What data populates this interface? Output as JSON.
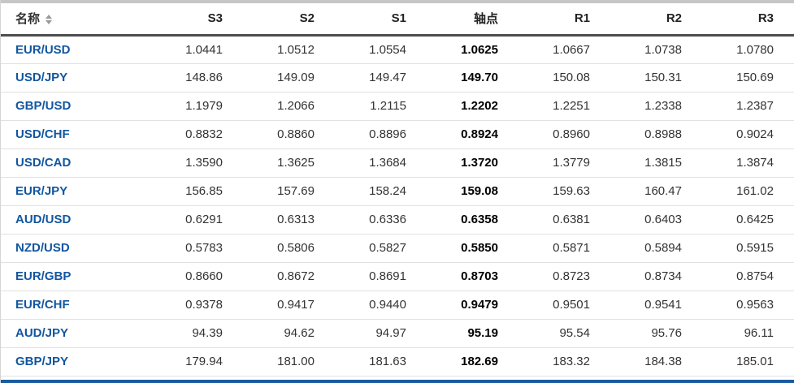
{
  "table": {
    "header": {
      "name_label": "名称",
      "columns": [
        "S3",
        "S2",
        "S1",
        "轴点",
        "R1",
        "R2",
        "R3"
      ],
      "pivot_column_index": 3
    },
    "rows": [
      {
        "pair": "EUR/USD",
        "values": [
          "1.0441",
          "1.0512",
          "1.0554",
          "1.0625",
          "1.0667",
          "1.0738",
          "1.0780"
        ]
      },
      {
        "pair": "USD/JPY",
        "values": [
          "148.86",
          "149.09",
          "149.47",
          "149.70",
          "150.08",
          "150.31",
          "150.69"
        ]
      },
      {
        "pair": "GBP/USD",
        "values": [
          "1.1979",
          "1.2066",
          "1.2115",
          "1.2202",
          "1.2251",
          "1.2338",
          "1.2387"
        ]
      },
      {
        "pair": "USD/CHF",
        "values": [
          "0.8832",
          "0.8860",
          "0.8896",
          "0.8924",
          "0.8960",
          "0.8988",
          "0.9024"
        ]
      },
      {
        "pair": "USD/CAD",
        "values": [
          "1.3590",
          "1.3625",
          "1.3684",
          "1.3720",
          "1.3779",
          "1.3815",
          "1.3874"
        ]
      },
      {
        "pair": "EUR/JPY",
        "values": [
          "156.85",
          "157.69",
          "158.24",
          "159.08",
          "159.63",
          "160.47",
          "161.02"
        ]
      },
      {
        "pair": "AUD/USD",
        "values": [
          "0.6291",
          "0.6313",
          "0.6336",
          "0.6358",
          "0.6381",
          "0.6403",
          "0.6425"
        ]
      },
      {
        "pair": "NZD/USD",
        "values": [
          "0.5783",
          "0.5806",
          "0.5827",
          "0.5850",
          "0.5871",
          "0.5894",
          "0.5915"
        ]
      },
      {
        "pair": "EUR/GBP",
        "values": [
          "0.8660",
          "0.8672",
          "0.8691",
          "0.8703",
          "0.8723",
          "0.8734",
          "0.8754"
        ]
      },
      {
        "pair": "EUR/CHF",
        "values": [
          "0.9378",
          "0.9417",
          "0.9440",
          "0.9479",
          "0.9501",
          "0.9541",
          "0.9563"
        ]
      },
      {
        "pair": "AUD/JPY",
        "values": [
          "94.39",
          "94.62",
          "94.97",
          "95.19",
          "95.54",
          "95.76",
          "96.11"
        ]
      },
      {
        "pair": "GBP/JPY",
        "values": [
          "179.94",
          "181.00",
          "181.63",
          "182.69",
          "183.32",
          "184.38",
          "185.01"
        ]
      }
    ]
  },
  "colors": {
    "pair_link": "#1256a0",
    "pivot_text": "#000000",
    "cell_text": "#333333",
    "header_rule": "#4d4d4d",
    "row_border": "#e1e1e1",
    "top_scrollbar": "#c6c6c6",
    "bottom_bar": "#1a5a9e"
  }
}
